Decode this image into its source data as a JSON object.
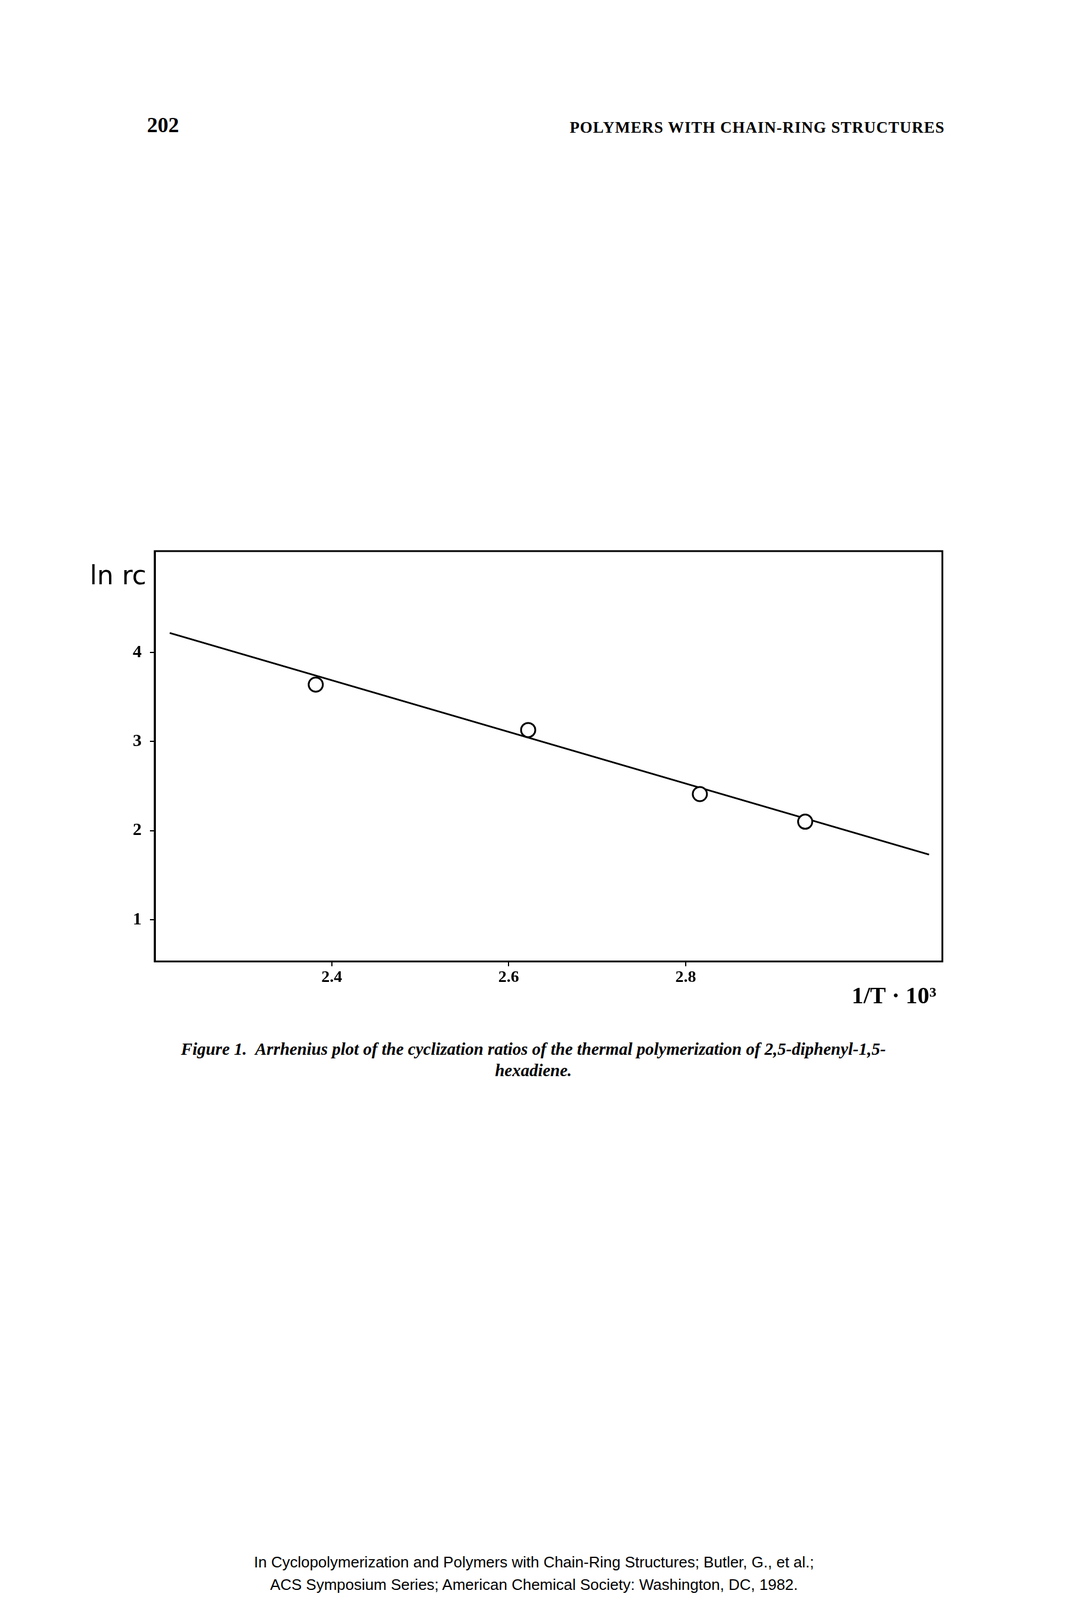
{
  "header": {
    "page_number": "202",
    "running_title": "POLYMERS WITH CHAIN-RING STRUCTURES"
  },
  "chart_data": {
    "type": "scatter",
    "xlabel": "1/T · 10³",
    "ylabel": "ln rc",
    "series": [
      {
        "type": "line",
        "line_style": "solid",
        "color": "#000000",
        "x": [
          2.217,
          3.075
        ],
        "values": [
          4.22,
          1.73
        ]
      },
      {
        "type": "scatter",
        "marker": "circle",
        "color": "#000000",
        "x": [
          2.382,
          2.622,
          2.816,
          2.935
        ],
        "values": [
          3.64,
          3.13,
          2.41,
          2.1
        ]
      }
    ],
    "xlim": [
      2.2,
      3.09
    ],
    "xticks": [
      2.4,
      2.6,
      2.8
    ],
    "ylim": [
      0.53,
      5.14
    ],
    "yticks": [
      1,
      2,
      3,
      4
    ],
    "grid": false
  },
  "caption": {
    "label": "Figure 1.",
    "text": "Arrhenius plot of the cyclization ratios of the thermal polymerization of 2,5-diphenyl-1,5-hexadiene."
  },
  "footer": [
    "In Cyclopolymerization and Polymers with Chain-Ring Structures; Butler, G., et al.;",
    "ACS Symposium Series; American Chemical Society: Washington, DC, 1982."
  ]
}
